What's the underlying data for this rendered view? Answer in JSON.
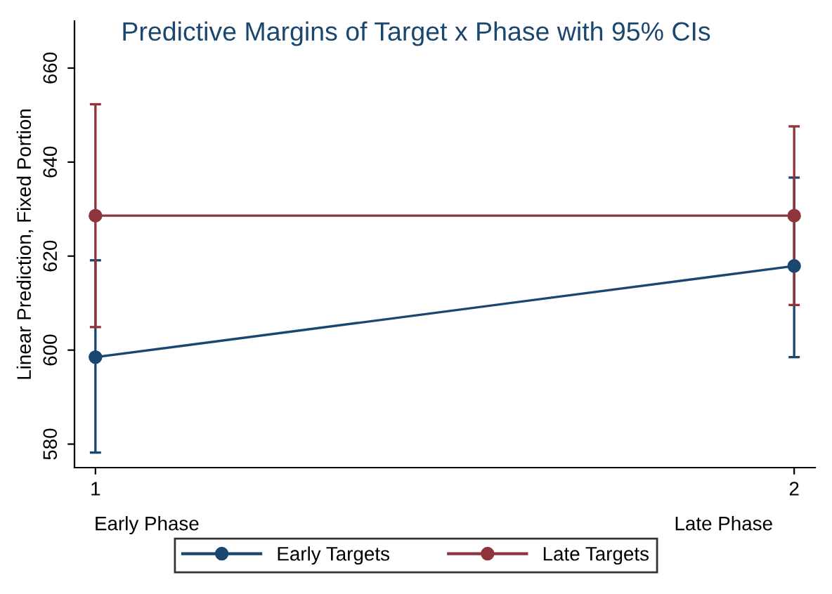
{
  "chart_data": {
    "type": "line",
    "title": "Predictive Margins of Target x Phase with 95% CIs",
    "ylabel": "Linear Prediction, Fixed Portion",
    "x": [
      1,
      2
    ],
    "xlim": [
      0.97,
      2.03
    ],
    "xticks": [
      1,
      2
    ],
    "ylim": [
      575,
      670
    ],
    "yticks": [
      580,
      600,
      620,
      640,
      660
    ],
    "annotations": [
      "Early Phase",
      "Late Phase"
    ],
    "series": [
      {
        "name": "Early Targets",
        "color": "#1a476f",
        "values": [
          598.5,
          617.9
        ],
        "errors": [
          [
            578.2,
            619.1
          ],
          [
            598.5,
            636.7
          ]
        ]
      },
      {
        "name": "Late Targets",
        "color": "#90353b",
        "values": [
          628.6,
          628.6
        ],
        "errors": [
          [
            604.9,
            652.3
          ],
          [
            609.6,
            647.6
          ]
        ]
      }
    ],
    "marker": "circle",
    "line_style": "solid",
    "grid": false,
    "legend": "bottom"
  }
}
